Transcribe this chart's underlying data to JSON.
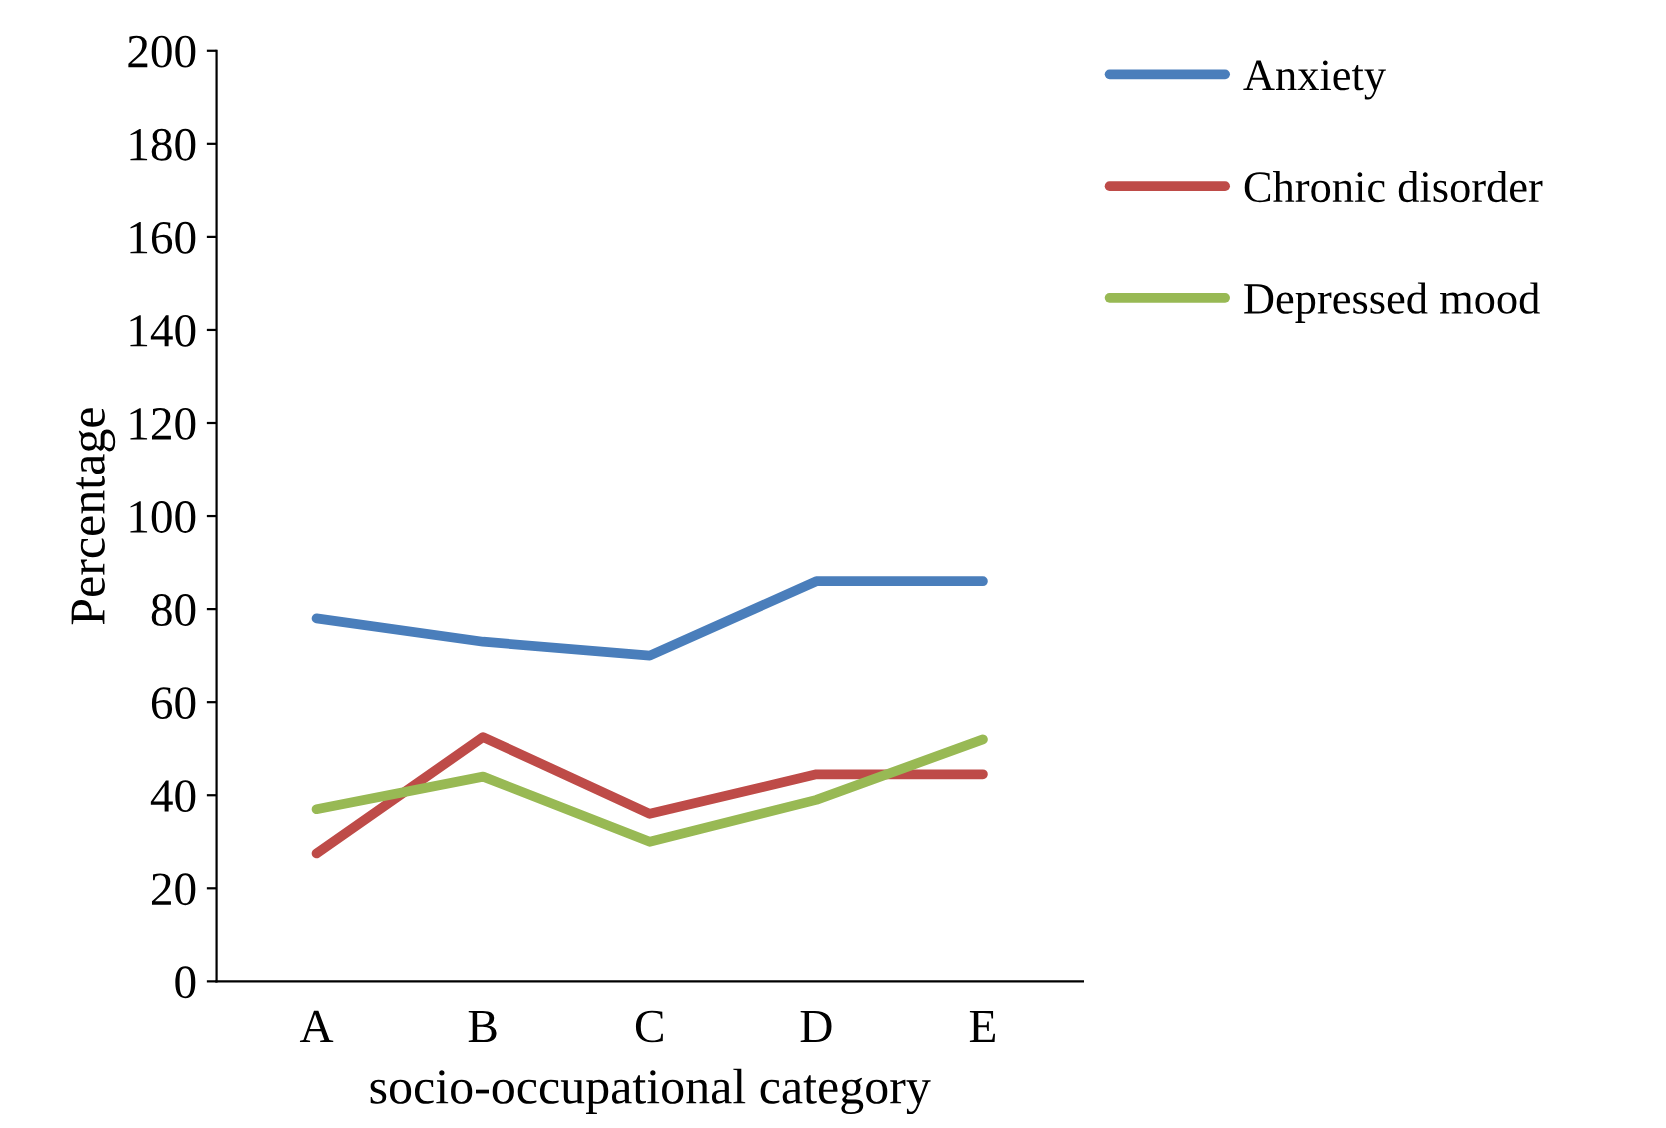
{
  "chart_data": {
    "type": "line",
    "xlabel": "socio-occupational category",
    "ylabel": "Percentage",
    "categories": [
      "A",
      "B",
      "C",
      "D",
      "E"
    ],
    "series": [
      {
        "name": "Anxiety",
        "color": "#4a7ebb",
        "values": [
          78,
          73,
          70,
          86,
          86
        ]
      },
      {
        "name": "Chronic disorder",
        "color": "#be4b48",
        "values": [
          27.5,
          52.5,
          36,
          44.5,
          44.5
        ]
      },
      {
        "name": "Depressed mood",
        "color": "#98b954",
        "values": [
          37,
          44,
          30,
          39,
          52
        ]
      }
    ],
    "ylim": [
      0,
      200
    ],
    "yticks": [
      0,
      20,
      40,
      60,
      80,
      100,
      120,
      140,
      160,
      180,
      200
    ],
    "grid": false,
    "legend": "top right",
    "marker": "none",
    "line_style": "solid"
  }
}
